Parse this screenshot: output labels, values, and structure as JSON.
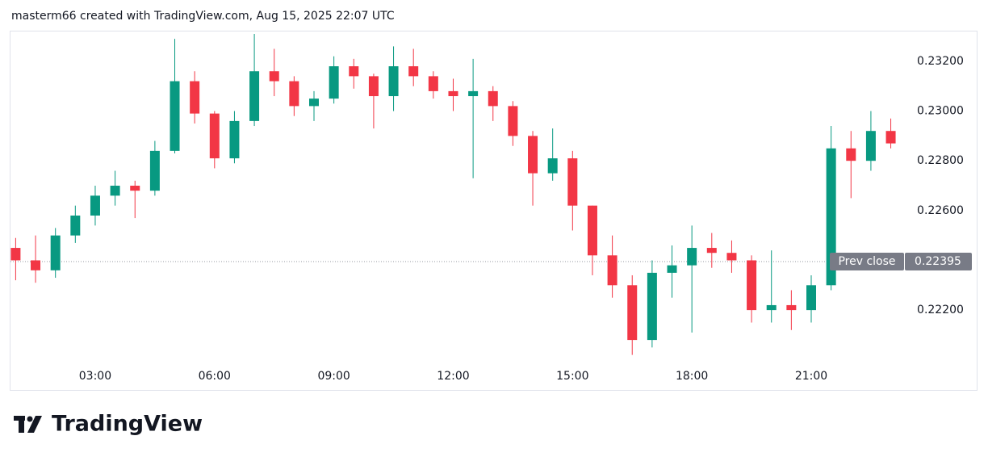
{
  "header": {
    "text": "masterm66 created with TradingView.com, Aug 15, 2025 22:07 UTC"
  },
  "logo": {
    "text": "TradingView"
  },
  "chart_data": {
    "type": "candlestick",
    "categories": [
      null,
      null,
      null,
      null,
      "03:00",
      null,
      null,
      null,
      null,
      null,
      "06:00",
      null,
      null,
      null,
      null,
      null,
      "09:00",
      null,
      null,
      null,
      null,
      null,
      "12:00",
      null,
      null,
      null,
      null,
      null,
      "15:00",
      null,
      null,
      null,
      null,
      null,
      "18:00",
      null,
      null,
      null,
      null,
      null,
      "21:00",
      null,
      null,
      null,
      null
    ],
    "open": [
      0.2245,
      0.224,
      0.2236,
      0.225,
      0.2258,
      0.2266,
      0.227,
      0.2268,
      0.2284,
      0.2312,
      0.2299,
      0.2281,
      0.2296,
      0.2316,
      0.2312,
      0.2302,
      0.2305,
      0.2318,
      0.2314,
      0.2306,
      0.2318,
      0.2314,
      0.2308,
      0.2306,
      0.2308,
      0.2302,
      0.229,
      0.2275,
      0.2281,
      0.2262,
      0.2242,
      0.223,
      0.2208,
      0.2235,
      0.2238,
      0.2245,
      0.2243,
      0.224,
      0.222,
      0.2222,
      0.222,
      0.223,
      0.2285,
      0.228,
      0.2292
    ],
    "high": [
      0.2249,
      0.225,
      0.2253,
      0.2262,
      0.227,
      0.2276,
      0.2272,
      0.2288,
      0.2329,
      0.2316,
      0.23,
      0.23,
      0.2331,
      0.2325,
      0.2314,
      0.2308,
      0.2322,
      0.2321,
      0.2315,
      0.2326,
      0.2325,
      0.2316,
      0.2313,
      0.2321,
      0.231,
      0.2304,
      0.2292,
      0.2293,
      0.2284,
      0.2262,
      0.225,
      0.2234,
      0.224,
      0.2246,
      0.2254,
      0.2251,
      0.2248,
      0.2242,
      0.2244,
      0.2228,
      0.2234,
      0.2294,
      0.2292,
      0.23,
      0.2297
    ],
    "low": [
      0.2232,
      0.2231,
      0.2233,
      0.2247,
      0.2254,
      0.2262,
      0.2257,
      0.2266,
      0.2283,
      0.2295,
      0.2277,
      0.2279,
      0.2294,
      0.2306,
      0.2298,
      0.2296,
      0.2303,
      0.2309,
      0.2293,
      0.23,
      0.231,
      0.2305,
      0.23,
      0.2273,
      0.2296,
      0.2286,
      0.2262,
      0.2272,
      0.2252,
      0.2234,
      0.2225,
      0.2202,
      0.2205,
      0.2225,
      0.2211,
      0.2237,
      0.2235,
      0.2215,
      0.2215,
      0.2212,
      0.2215,
      0.2228,
      0.2265,
      0.2276,
      0.2285
    ],
    "close": [
      0.224,
      0.2236,
      0.225,
      0.2258,
      0.2266,
      0.227,
      0.2268,
      0.2284,
      0.2312,
      0.2299,
      0.2281,
      0.2296,
      0.2316,
      0.2312,
      0.2302,
      0.2305,
      0.2318,
      0.2314,
      0.2306,
      0.2318,
      0.2314,
      0.2308,
      0.2306,
      0.2308,
      0.2302,
      0.229,
      0.2275,
      0.2281,
      0.2262,
      0.2242,
      0.223,
      0.2208,
      0.2235,
      0.2238,
      0.2245,
      0.2243,
      0.224,
      0.222,
      0.2222,
      0.222,
      0.223,
      0.2285,
      0.228,
      0.2292,
      0.2287
    ],
    "up_color": "#089981",
    "down_color": "#f23645",
    "ylim": [
      0.2197,
      0.23323
    ],
    "yticks": [
      {
        "value": 0.222,
        "label": "0.22200"
      },
      {
        "value": 0.224,
        "label": "0.22400"
      },
      {
        "value": 0.226,
        "label": "0.22600"
      },
      {
        "value": 0.228,
        "label": "0.22800"
      },
      {
        "value": 0.23,
        "label": "0.23000"
      },
      {
        "value": 0.232,
        "label": "0.23200"
      }
    ],
    "prev_close": {
      "label": "Prev close",
      "value": 0.22395,
      "value_label": "0.22395"
    }
  }
}
